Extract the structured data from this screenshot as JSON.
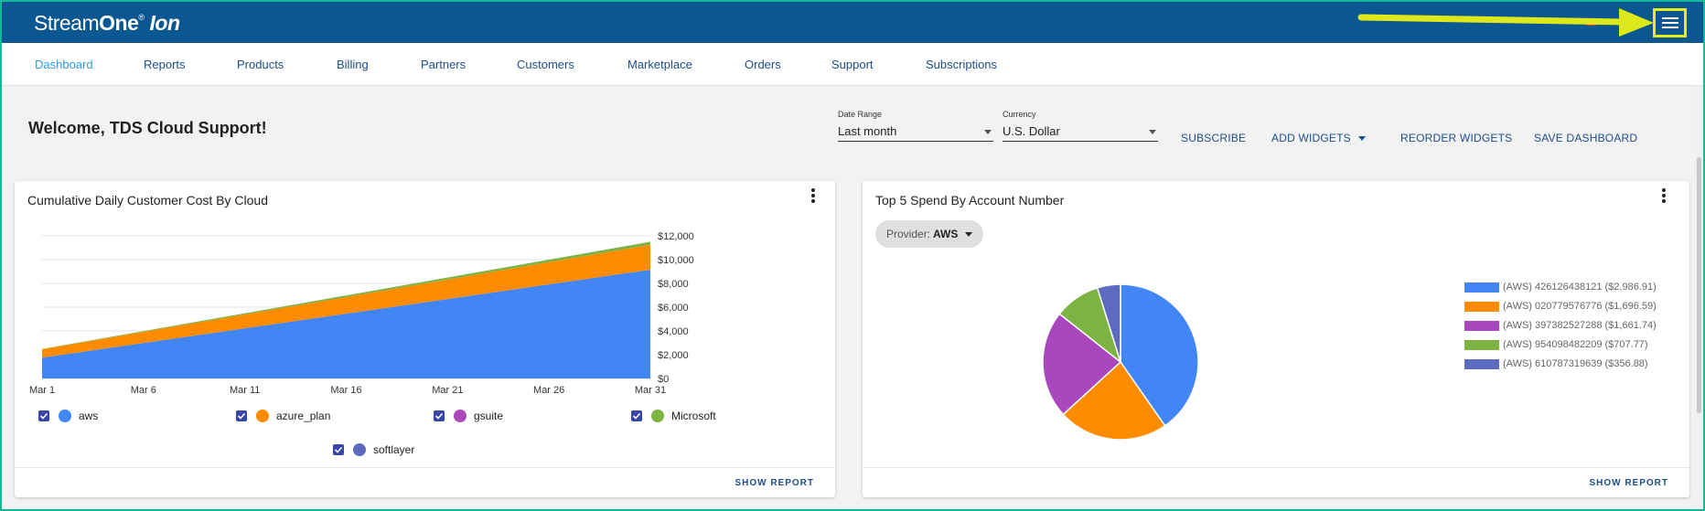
{
  "app": {
    "logo_part1": "Stream",
    "logo_part2": "One",
    "logo_reg": "®",
    "logo_part3": "Ion",
    "menu_icon": "hamburger-menu-icon",
    "annotation_arrow_color": "#dce81a"
  },
  "nav": {
    "items": [
      {
        "label": "Dashboard",
        "active": true
      },
      {
        "label": "Reports"
      },
      {
        "label": "Products"
      },
      {
        "label": "Billing"
      },
      {
        "label": "Partners"
      },
      {
        "label": "Customers"
      },
      {
        "label": "Marketplace"
      },
      {
        "label": "Orders"
      },
      {
        "label": "Support"
      },
      {
        "label": "Subscriptions"
      }
    ]
  },
  "toolbar": {
    "welcome": "Welcome, TDS Cloud Support!",
    "date_range_label": "Date Range",
    "date_range_value": "Last month",
    "currency_label": "Currency",
    "currency_value": "U.S. Dollar",
    "subscribe": "SUBSCRIBE",
    "add_widgets": "ADD WIDGETS",
    "reorder_widgets": "REORDER WIDGETS",
    "save_dashboard": "SAVE DASHBOARD"
  },
  "widget1": {
    "title": "Cumulative Daily Customer Cost By Cloud",
    "show_report": "SHOW REPORT",
    "legend": [
      {
        "label": "aws",
        "color": "#4285f4"
      },
      {
        "label": "azure_plan",
        "color": "#ff8c00"
      },
      {
        "label": "gsuite",
        "color": "#ab47bc"
      },
      {
        "label": "Microsoft",
        "color": "#7cb342"
      },
      {
        "label": "softlayer",
        "color": "#5c6bc0"
      }
    ]
  },
  "widget2": {
    "title": "Top 5 Spend By Account Number",
    "provider_label": "Provider:",
    "provider_value": "AWS",
    "show_report": "SHOW REPORT",
    "legend": [
      {
        "label": "(AWS) 426126438121 ($2,986.91)",
        "color": "#4285f4"
      },
      {
        "label": "(AWS) 020779576776 ($1,696.59)",
        "color": "#ff8c00"
      },
      {
        "label": "(AWS) 397382527288 ($1,661.74)",
        "color": "#ab47bc"
      },
      {
        "label": "(AWS) 954098482209 ($707.77)",
        "color": "#7cb342"
      },
      {
        "label": "(AWS) 610787319639 ($356.88)",
        "color": "#5c6bc0"
      }
    ]
  },
  "chart_data": [
    {
      "type": "area",
      "title": "Cumulative Daily Customer Cost By Cloud",
      "stacked": true,
      "x_tick_labels": [
        "Mar 1",
        "Mar 6",
        "Mar 11",
        "Mar 16",
        "Mar 21",
        "Mar 26",
        "Mar 31"
      ],
      "y_tick_labels": [
        "$0",
        "$2,000",
        "$4,000",
        "$6,000",
        "$8,000",
        "$10,000",
        "$12,000"
      ],
      "ylim": [
        0,
        12000
      ],
      "days": [
        1,
        31
      ],
      "series": [
        {
          "name": "aws",
          "color": "#4285f4",
          "start": 1750,
          "end": 9150
        },
        {
          "name": "azure_plan",
          "color": "#ff8c00",
          "start": 700,
          "end": 2100
        },
        {
          "name": "gsuite",
          "color": "#ab47bc",
          "start": 0,
          "end": 0
        },
        {
          "name": "Microsoft",
          "color": "#7cb342",
          "start": 30,
          "end": 250
        },
        {
          "name": "softlayer",
          "color": "#5c6bc0",
          "start": 0,
          "end": 0
        }
      ]
    },
    {
      "type": "pie",
      "title": "Top 5 Spend By Account Number",
      "labels": [
        "(AWS) 426126438121",
        "(AWS) 020779576776",
        "(AWS) 397382527288",
        "(AWS) 954098482209",
        "(AWS) 610787319639"
      ],
      "values": [
        2986.91,
        1696.59,
        1661.74,
        707.77,
        356.88
      ],
      "colors": [
        "#4285f4",
        "#ff8c00",
        "#ab47bc",
        "#7cb342",
        "#5c6bc0"
      ]
    }
  ]
}
